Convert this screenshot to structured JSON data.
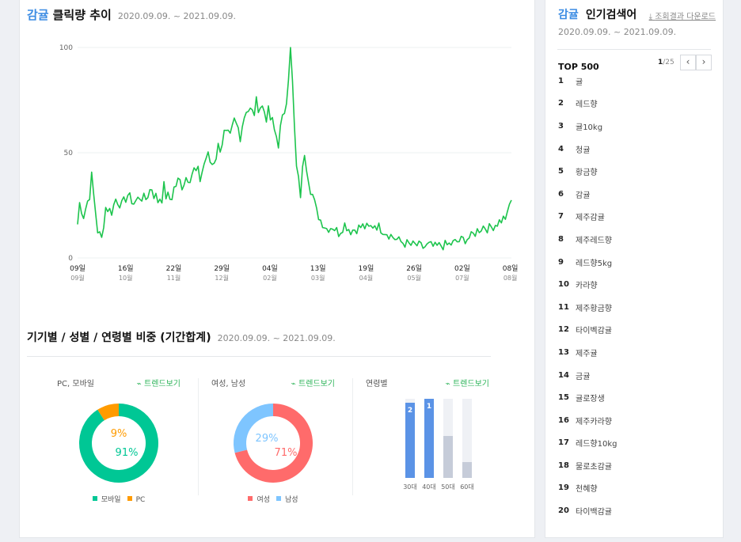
{
  "header": {
    "keyword": "감귤",
    "title": "클릭량 추이",
    "date_range": "2020.09.09. ~ 2021.09.09.",
    "download_label": "조회결과 다운로드"
  },
  "chart_data": [
    {
      "type": "line",
      "y_ticks": [
        "100",
        "50",
        "0"
      ],
      "ylim": [
        0,
        100
      ],
      "grid": true,
      "x_ticks": [
        {
          "day": "09일",
          "month": "09월"
        },
        {
          "day": "16일",
          "month": "10월"
        },
        {
          "day": "22일",
          "month": "11월"
        },
        {
          "day": "29일",
          "month": "12월"
        },
        {
          "day": "04일",
          "month": "02월"
        },
        {
          "day": "13일",
          "month": "03월"
        },
        {
          "day": "19일",
          "month": "04월"
        },
        {
          "day": "26일",
          "month": "05월"
        },
        {
          "day": "02일",
          "month": "07월"
        },
        {
          "day": "08일",
          "month": "08월"
        }
      ],
      "x_tick_positions": [
        0,
        37,
        74,
        111,
        148,
        185,
        222,
        259,
        296,
        333
      ],
      "y_knots": [
        [
          0,
          16
        ],
        [
          1,
          26
        ],
        [
          3,
          20
        ],
        [
          5,
          27
        ],
        [
          7,
          37
        ],
        [
          8,
          30
        ],
        [
          10,
          13
        ],
        [
          12,
          9
        ],
        [
          14,
          24
        ],
        [
          17,
          22
        ],
        [
          19,
          28
        ],
        [
          22,
          25
        ],
        [
          25,
          30
        ],
        [
          28,
          26
        ],
        [
          31,
          29
        ],
        [
          34,
          28
        ],
        [
          37,
          34
        ],
        [
          40,
          27
        ],
        [
          43,
          32
        ],
        [
          46,
          28
        ],
        [
          49,
          35
        ],
        [
          52,
          36
        ],
        [
          55,
          40
        ],
        [
          58,
          41
        ],
        [
          61,
          38
        ],
        [
          64,
          48
        ],
        [
          67,
          45
        ],
        [
          70,
          52
        ],
        [
          73,
          58
        ],
        [
          76,
          55
        ],
        [
          78,
          64
        ],
        [
          81,
          60
        ],
        [
          84,
          72
        ],
        [
          87,
          68
        ],
        [
          90,
          74
        ],
        [
          93,
          70
        ],
        [
          96,
          66
        ],
        [
          98,
          60
        ],
        [
          100,
          56
        ],
        [
          102,
          64
        ],
        [
          104,
          78
        ],
        [
          105,
          88
        ],
        [
          106,
          100
        ],
        [
          107,
          82
        ],
        [
          108,
          60
        ],
        [
          109,
          42
        ],
        [
          110,
          35
        ],
        [
          111,
          30
        ],
        [
          112,
          40
        ],
        [
          113,
          52
        ],
        [
          115,
          40
        ],
        [
          117,
          30
        ],
        [
          119,
          22
        ],
        [
          121,
          18
        ],
        [
          124,
          14
        ],
        [
          127,
          15
        ],
        [
          130,
          12
        ],
        [
          133,
          16
        ],
        [
          136,
          13
        ],
        [
          139,
          14
        ],
        [
          142,
          15
        ],
        [
          145,
          14
        ],
        [
          148,
          16
        ],
        [
          151,
          14
        ],
        [
          154,
          12
        ],
        [
          157,
          10
        ],
        [
          160,
          8
        ],
        [
          163,
          7
        ],
        [
          166,
          6
        ],
        [
          169,
          6
        ],
        [
          172,
          5
        ],
        [
          175,
          6
        ],
        [
          178,
          5
        ],
        [
          181,
          6
        ],
        [
          184,
          6
        ],
        [
          187,
          7
        ],
        [
          190,
          8
        ],
        [
          193,
          9
        ],
        [
          196,
          10
        ],
        [
          199,
          13
        ],
        [
          202,
          15
        ],
        [
          205,
          14
        ],
        [
          208,
          16
        ],
        [
          211,
          18
        ],
        [
          214,
          20
        ],
        [
          215,
          25
        ],
        [
          216,
          28
        ]
      ]
    },
    {
      "type": "pie",
      "title": "PC, 모바일",
      "labels": [
        "모바일",
        "PC"
      ],
      "values": [
        91,
        9
      ],
      "value_labels": [
        "91%",
        "9%"
      ],
      "colors": [
        "#00c795",
        "#ff9b00"
      ]
    },
    {
      "type": "pie",
      "title": "여성, 남성",
      "labels": [
        "여성",
        "남성"
      ],
      "values": [
        71,
        29
      ],
      "value_labels": [
        "71%",
        "29%"
      ],
      "colors": [
        "#ff6b6b",
        "#7ec5ff"
      ]
    },
    {
      "type": "bar",
      "title": "연령별",
      "categories": [
        "30대",
        "40대",
        "50대",
        "60대"
      ],
      "values": [
        95,
        100,
        53,
        20
      ],
      "rank_labels": [
        "2",
        "1",
        "",
        ""
      ],
      "colors": [
        "#5b93e6",
        "#5b93e6",
        "#c6ccd9",
        "#c6ccd9"
      ],
      "track_color": "#eff1f5",
      "ylim": [
        0,
        100
      ]
    }
  ],
  "section2": {
    "title": "기기별 / 성별 / 연령별 비중 (기간합계)",
    "date_range": "2020.09.09. ~ 2021.09.09.",
    "trend_label": "트렌드보기"
  },
  "sidebar": {
    "keyword": "감귤",
    "title": "인기검색어",
    "date_range": "2020.09.09. ~ 2021.09.09.",
    "top_label": "TOP 500",
    "page_current": "1",
    "page_total": "/25",
    "prev_icon": "‹",
    "next_icon": "›",
    "items": [
      {
        "rank": "1",
        "keyword": "귤"
      },
      {
        "rank": "2",
        "keyword": "레드향"
      },
      {
        "rank": "3",
        "keyword": "귤10kg"
      },
      {
        "rank": "4",
        "keyword": "청귤"
      },
      {
        "rank": "5",
        "keyword": "황금향"
      },
      {
        "rank": "6",
        "keyword": "감귤"
      },
      {
        "rank": "7",
        "keyword": "제주감귤"
      },
      {
        "rank": "8",
        "keyword": "제주레드향"
      },
      {
        "rank": "9",
        "keyword": "레드향5kg"
      },
      {
        "rank": "10",
        "keyword": "카라향"
      },
      {
        "rank": "11",
        "keyword": "제주황금향"
      },
      {
        "rank": "12",
        "keyword": "타이벡감귤"
      },
      {
        "rank": "13",
        "keyword": "제주귤"
      },
      {
        "rank": "14",
        "keyword": "금귤"
      },
      {
        "rank": "15",
        "keyword": "귤로장생"
      },
      {
        "rank": "16",
        "keyword": "제주카라향"
      },
      {
        "rank": "17",
        "keyword": "레드향10kg"
      },
      {
        "rank": "18",
        "keyword": "물로초감귤"
      },
      {
        "rank": "19",
        "keyword": "천혜향"
      },
      {
        "rank": "20",
        "keyword": "타이백감귤"
      }
    ]
  }
}
